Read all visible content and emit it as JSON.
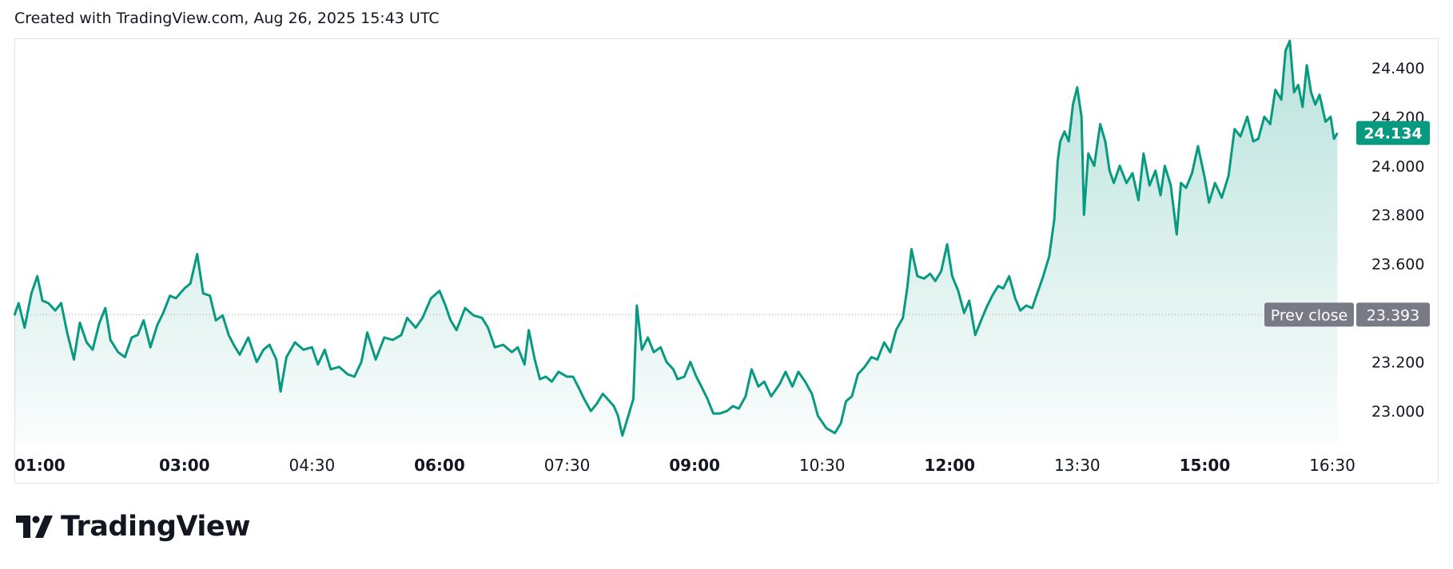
{
  "header": {
    "caption": "Created with TradingView.com, Aug 26, 2025 15:43 UTC"
  },
  "brand": {
    "name": "TradingView"
  },
  "colors": {
    "line": "#089981",
    "last_price_bg": "#089981",
    "prev_close_bg": "#787b86",
    "text": "#131722"
  },
  "chart_data": {
    "type": "area",
    "x_ticks": [
      {
        "label": "01:00",
        "hour": 1.0,
        "bold": true
      },
      {
        "label": "03:00",
        "hour": 3.0,
        "bold": true
      },
      {
        "label": "04:30",
        "hour": 4.5,
        "bold": false
      },
      {
        "label": "06:00",
        "hour": 6.0,
        "bold": true
      },
      {
        "label": "07:30",
        "hour": 7.5,
        "bold": false
      },
      {
        "label": "09:00",
        "hour": 9.0,
        "bold": true
      },
      {
        "label": "10:30",
        "hour": 10.5,
        "bold": false
      },
      {
        "label": "12:00",
        "hour": 12.0,
        "bold": true
      },
      {
        "label": "13:30",
        "hour": 13.5,
        "bold": false
      },
      {
        "label": "15:00",
        "hour": 15.0,
        "bold": true
      },
      {
        "label": "16:30",
        "hour": 16.5,
        "bold": false
      }
    ],
    "y_ticks": [
      "23.000",
      "23.200",
      "23.400",
      "23.600",
      "23.800",
      "24.000",
      "24.200",
      "24.400"
    ],
    "y_tick_values": [
      23.0,
      23.2,
      23.4,
      23.6,
      23.8,
      24.0,
      24.2,
      24.4
    ],
    "ylim": [
      22.87,
      24.52
    ],
    "xlim_hours": [
      1.0,
      16.75
    ],
    "prev_close": {
      "label": "Prev close",
      "value": 23.393,
      "value_label": "23.393"
    },
    "last_price": {
      "value": 24.134,
      "value_label": "24.134"
    },
    "series": [
      {
        "points": [
          [
            1.0,
            23.39
          ],
          [
            1.05,
            23.44
          ],
          [
            1.12,
            23.34
          ],
          [
            1.2,
            23.48
          ],
          [
            1.27,
            23.55
          ],
          [
            1.33,
            23.45
          ],
          [
            1.4,
            23.44
          ],
          [
            1.48,
            23.41
          ],
          [
            1.55,
            23.44
          ],
          [
            1.62,
            23.32
          ],
          [
            1.7,
            23.21
          ],
          [
            1.77,
            23.36
          ],
          [
            1.85,
            23.28
          ],
          [
            1.92,
            23.25
          ],
          [
            2.0,
            23.36
          ],
          [
            2.07,
            23.42
          ],
          [
            2.13,
            23.29
          ],
          [
            2.22,
            23.24
          ],
          [
            2.3,
            23.22
          ],
          [
            2.38,
            23.3
          ],
          [
            2.45,
            23.31
          ],
          [
            2.52,
            23.37
          ],
          [
            2.6,
            23.26
          ],
          [
            2.68,
            23.35
          ],
          [
            2.75,
            23.4
          ],
          [
            2.83,
            23.47
          ],
          [
            2.9,
            23.46
          ],
          [
            3.0,
            23.5
          ],
          [
            3.07,
            23.52
          ],
          [
            3.15,
            23.64
          ],
          [
            3.22,
            23.48
          ],
          [
            3.3,
            23.47
          ],
          [
            3.37,
            23.37
          ],
          [
            3.45,
            23.39
          ],
          [
            3.52,
            23.31
          ],
          [
            3.58,
            23.27
          ],
          [
            3.65,
            23.23
          ],
          [
            3.75,
            23.3
          ],
          [
            3.85,
            23.2
          ],
          [
            3.93,
            23.25
          ],
          [
            4.0,
            23.27
          ],
          [
            4.08,
            23.21
          ],
          [
            4.13,
            23.08
          ],
          [
            4.2,
            23.22
          ],
          [
            4.3,
            23.28
          ],
          [
            4.4,
            23.25
          ],
          [
            4.5,
            23.26
          ],
          [
            4.57,
            23.19
          ],
          [
            4.65,
            23.25
          ],
          [
            4.72,
            23.17
          ],
          [
            4.82,
            23.18
          ],
          [
            4.92,
            23.15
          ],
          [
            5.0,
            23.14
          ],
          [
            5.08,
            23.2
          ],
          [
            5.15,
            23.32
          ],
          [
            5.25,
            23.21
          ],
          [
            5.35,
            23.3
          ],
          [
            5.45,
            23.29
          ],
          [
            5.55,
            23.31
          ],
          [
            5.62,
            23.38
          ],
          [
            5.72,
            23.34
          ],
          [
            5.8,
            23.38
          ],
          [
            5.9,
            23.46
          ],
          [
            6.0,
            23.49
          ],
          [
            6.07,
            23.43
          ],
          [
            6.13,
            23.37
          ],
          [
            6.2,
            23.33
          ],
          [
            6.3,
            23.42
          ],
          [
            6.4,
            23.39
          ],
          [
            6.5,
            23.38
          ],
          [
            6.57,
            23.34
          ],
          [
            6.65,
            23.26
          ],
          [
            6.75,
            23.27
          ],
          [
            6.85,
            23.24
          ],
          [
            6.92,
            23.26
          ],
          [
            7.0,
            23.19
          ],
          [
            7.05,
            23.33
          ],
          [
            7.12,
            23.21
          ],
          [
            7.18,
            23.13
          ],
          [
            7.25,
            23.14
          ],
          [
            7.32,
            23.12
          ],
          [
            7.4,
            23.16
          ],
          [
            7.5,
            23.14
          ],
          [
            7.57,
            23.14
          ],
          [
            7.63,
            23.1
          ],
          [
            7.7,
            23.05
          ],
          [
            7.78,
            23.0
          ],
          [
            7.85,
            23.03
          ],
          [
            7.92,
            23.07
          ],
          [
            8.0,
            23.04
          ],
          [
            8.05,
            23.02
          ],
          [
            8.1,
            22.98
          ],
          [
            8.15,
            22.9
          ],
          [
            8.22,
            22.98
          ],
          [
            8.28,
            23.05
          ],
          [
            8.32,
            23.43
          ],
          [
            8.38,
            23.25
          ],
          [
            8.45,
            23.3
          ],
          [
            8.52,
            23.24
          ],
          [
            8.6,
            23.26
          ],
          [
            8.67,
            23.2
          ],
          [
            8.75,
            23.17
          ],
          [
            8.8,
            23.13
          ],
          [
            8.88,
            23.14
          ],
          [
            8.95,
            23.2
          ],
          [
            9.02,
            23.14
          ],
          [
            9.08,
            23.1
          ],
          [
            9.15,
            23.05
          ],
          [
            9.22,
            22.99
          ],
          [
            9.3,
            22.99
          ],
          [
            9.38,
            23.0
          ],
          [
            9.45,
            23.02
          ],
          [
            9.52,
            23.01
          ],
          [
            9.6,
            23.06
          ],
          [
            9.67,
            23.17
          ],
          [
            9.75,
            23.1
          ],
          [
            9.82,
            23.12
          ],
          [
            9.9,
            23.06
          ],
          [
            10.0,
            23.11
          ],
          [
            10.07,
            23.16
          ],
          [
            10.15,
            23.1
          ],
          [
            10.22,
            23.16
          ],
          [
            10.3,
            23.12
          ],
          [
            10.38,
            23.07
          ],
          [
            10.45,
            22.98
          ],
          [
            10.55,
            22.93
          ],
          [
            10.65,
            22.91
          ],
          [
            10.72,
            22.95
          ],
          [
            10.78,
            23.04
          ],
          [
            10.85,
            23.06
          ],
          [
            10.92,
            23.15
          ],
          [
            11.0,
            23.18
          ],
          [
            11.08,
            23.22
          ],
          [
            11.15,
            23.21
          ],
          [
            11.23,
            23.28
          ],
          [
            11.3,
            23.24
          ],
          [
            11.37,
            23.33
          ],
          [
            11.45,
            23.38
          ],
          [
            11.5,
            23.5
          ],
          [
            11.55,
            23.66
          ],
          [
            11.62,
            23.55
          ],
          [
            11.7,
            23.54
          ],
          [
            11.77,
            23.56
          ],
          [
            11.83,
            23.53
          ],
          [
            11.9,
            23.57
          ],
          [
            11.97,
            23.68
          ],
          [
            12.03,
            23.55
          ],
          [
            12.1,
            23.49
          ],
          [
            12.17,
            23.4
          ],
          [
            12.23,
            23.45
          ],
          [
            12.3,
            23.31
          ],
          [
            12.37,
            23.37
          ],
          [
            12.43,
            23.42
          ],
          [
            12.5,
            23.47
          ],
          [
            12.57,
            23.51
          ],
          [
            12.63,
            23.5
          ],
          [
            12.7,
            23.55
          ],
          [
            12.77,
            23.46
          ],
          [
            12.83,
            23.41
          ],
          [
            12.9,
            23.43
          ],
          [
            12.97,
            23.42
          ],
          [
            13.03,
            23.48
          ],
          [
            13.1,
            23.55
          ],
          [
            13.17,
            23.63
          ],
          [
            13.23,
            23.78
          ],
          [
            13.27,
            24.02
          ],
          [
            13.3,
            24.1
          ],
          [
            13.35,
            24.14
          ],
          [
            13.4,
            24.1
          ],
          [
            13.45,
            24.25
          ],
          [
            13.5,
            24.32
          ],
          [
            13.55,
            24.2
          ],
          [
            13.58,
            23.8
          ],
          [
            13.63,
            24.05
          ],
          [
            13.7,
            24.0
          ],
          [
            13.77,
            24.17
          ],
          [
            13.83,
            24.1
          ],
          [
            13.88,
            23.98
          ],
          [
            13.93,
            23.93
          ],
          [
            14.0,
            24.0
          ],
          [
            14.08,
            23.93
          ],
          [
            14.15,
            23.97
          ],
          [
            14.22,
            23.86
          ],
          [
            14.28,
            24.05
          ],
          [
            14.35,
            23.92
          ],
          [
            14.42,
            23.98
          ],
          [
            14.48,
            23.88
          ],
          [
            14.53,
            24.0
          ],
          [
            14.6,
            23.92
          ],
          [
            14.67,
            23.72
          ],
          [
            14.72,
            23.93
          ],
          [
            14.78,
            23.91
          ],
          [
            14.85,
            23.97
          ],
          [
            14.92,
            24.08
          ],
          [
            15.0,
            23.95
          ],
          [
            15.05,
            23.85
          ],
          [
            15.12,
            23.93
          ],
          [
            15.2,
            23.87
          ],
          [
            15.28,
            23.96
          ],
          [
            15.35,
            24.15
          ],
          [
            15.42,
            24.12
          ],
          [
            15.5,
            24.2
          ],
          [
            15.57,
            24.1
          ],
          [
            15.63,
            24.11
          ],
          [
            15.7,
            24.2
          ],
          [
            15.77,
            24.17
          ],
          [
            15.83,
            24.31
          ],
          [
            15.9,
            24.27
          ],
          [
            15.95,
            24.47
          ],
          [
            16.0,
            24.51
          ],
          [
            16.05,
            24.3
          ],
          [
            16.1,
            24.33
          ],
          [
            16.15,
            24.24
          ],
          [
            16.2,
            24.41
          ],
          [
            16.25,
            24.3
          ],
          [
            16.3,
            24.25
          ],
          [
            16.35,
            24.29
          ],
          [
            16.42,
            24.18
          ],
          [
            16.48,
            24.2
          ],
          [
            16.52,
            24.11
          ],
          [
            16.56,
            24.134
          ]
        ]
      }
    ]
  }
}
